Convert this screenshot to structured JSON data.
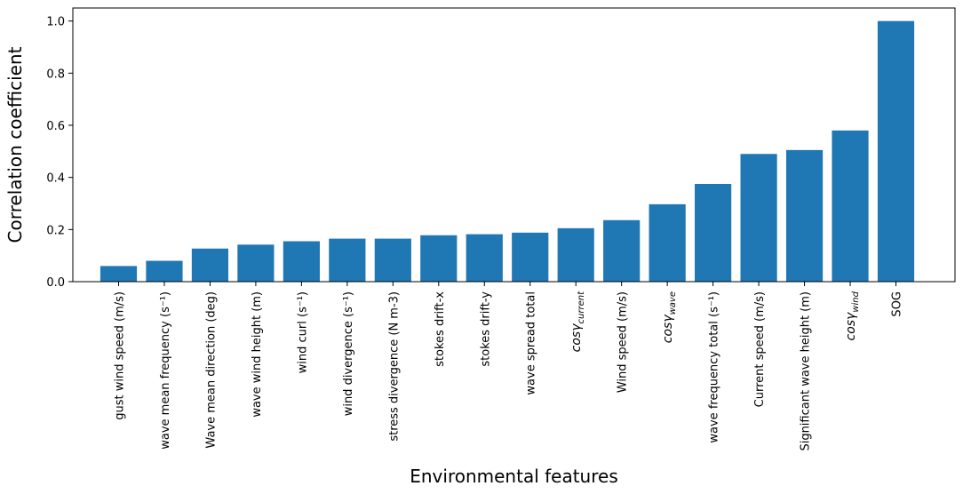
{
  "chart_data": {
    "type": "bar",
    "title": "",
    "xlabel": "Environmental features",
    "ylabel": "Correlation coefficient",
    "ylim": [
      0,
      1.05
    ],
    "yticks": [
      "0.0",
      "0.2",
      "0.4",
      "0.6",
      "0.8",
      "1.0"
    ],
    "bar_color": "#1f77b4",
    "grid": false,
    "categories": [
      "gust wind speed (m/s)",
      "wave mean frequency (s⁻¹)",
      "Wave mean direction (deg)",
      "wave wind height (m)",
      "wind curl (s⁻¹)",
      "wind divergence (s⁻¹)",
      "stress divergence (N m-3)",
      "stokes drift-x",
      "stokes drift-y",
      "wave spread total",
      "cosγ_current",
      "Wind speed (m/s)",
      "cosγ_wave",
      "wave frequency total (s⁻¹)",
      "Current speed (m/s)",
      "Significant wave height (m)",
      "cosγ_wind",
      "SOG"
    ],
    "values": [
      0.06,
      0.08,
      0.127,
      0.142,
      0.155,
      0.165,
      0.165,
      0.178,
      0.182,
      0.188,
      0.205,
      0.236,
      0.297,
      0.375,
      0.49,
      0.505,
      0.58,
      1.0
    ]
  }
}
